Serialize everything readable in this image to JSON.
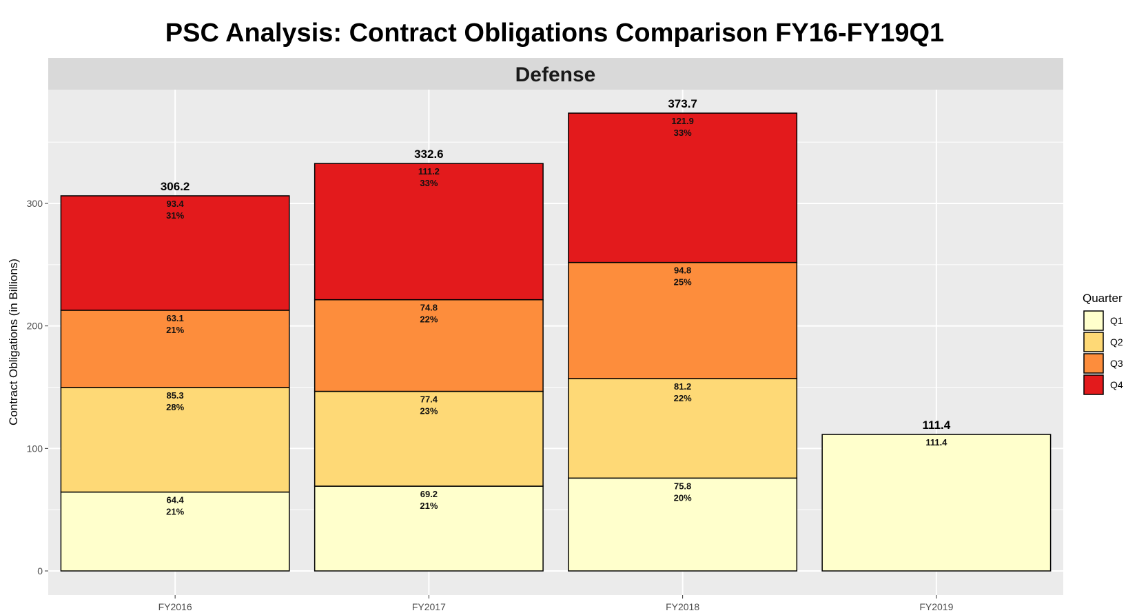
{
  "chart_data": {
    "type": "bar",
    "stacked": true,
    "title": "PSC Analysis: Contract Obligations Comparison FY16-FY19Q1",
    "facet": "Defense",
    "xlabel": "",
    "ylabel": "Contract Obligations (in Billions)",
    "ylim": [
      0,
      380
    ],
    "yticks": [
      0,
      100,
      200,
      300
    ],
    "grid": true,
    "legend": {
      "title": "Quarter",
      "position": "right"
    },
    "categories": [
      "FY2016",
      "FY2017",
      "FY2018",
      "FY2019"
    ],
    "series": [
      {
        "name": "Q1",
        "color": "#FFFFCC",
        "values": [
          64.4,
          69.2,
          75.8,
          111.4
        ],
        "percent_labels": [
          "21%",
          "21%",
          "20%",
          ""
        ]
      },
      {
        "name": "Q2",
        "color": "#FED976",
        "values": [
          85.3,
          77.4,
          81.2,
          null
        ],
        "percent_labels": [
          "28%",
          "23%",
          "22%",
          ""
        ]
      },
      {
        "name": "Q3",
        "color": "#FD8D3C",
        "values": [
          63.1,
          74.8,
          94.8,
          null
        ],
        "percent_labels": [
          "21%",
          "22%",
          "25%",
          ""
        ]
      },
      {
        "name": "Q4",
        "color": "#E31A1C",
        "values": [
          93.4,
          111.2,
          121.9,
          null
        ],
        "percent_labels": [
          "31%",
          "33%",
          "33%",
          ""
        ]
      }
    ],
    "totals": [
      "306.2",
      "332.6",
      "373.7",
      "111.4"
    ]
  }
}
